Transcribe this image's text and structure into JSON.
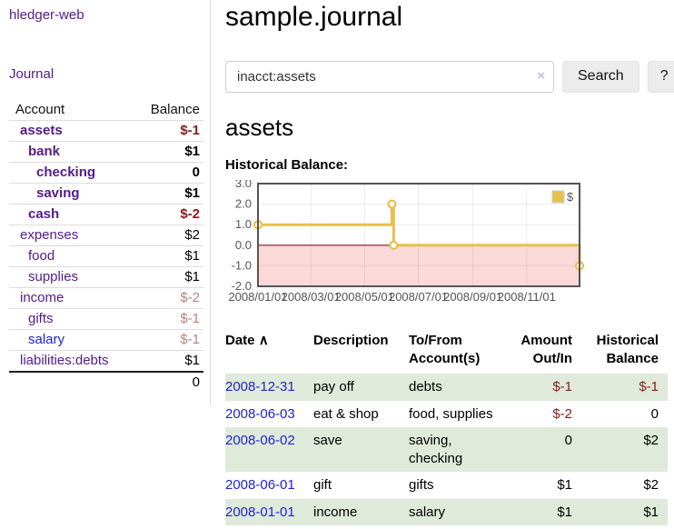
{
  "brand": "hledger-web",
  "sidebar": {
    "journal_link": "Journal",
    "accounts": {
      "header_account": "Account",
      "header_balance": "Balance",
      "rows": [
        {
          "name": "assets",
          "balance": "$-1"
        },
        {
          "name": "bank",
          "balance": "$1"
        },
        {
          "name": "checking",
          "balance": "0"
        },
        {
          "name": "saving",
          "balance": "$1"
        },
        {
          "name": "cash",
          "balance": "$-2"
        },
        {
          "name": "expenses",
          "balance": "$2"
        },
        {
          "name": "food",
          "balance": "$1"
        },
        {
          "name": "supplies",
          "balance": "$1"
        },
        {
          "name": "income",
          "balance": "$-2"
        },
        {
          "name": "gifts",
          "balance": "$-1"
        },
        {
          "name": "salary",
          "balance": "$-1"
        },
        {
          "name": "liabilities:debts",
          "balance": "$1"
        }
      ],
      "total": "0"
    }
  },
  "header": {
    "title": "sample.journal"
  },
  "search": {
    "query": "inacct:assets",
    "clear_label": "×",
    "button_label": "Search",
    "help_label": "?"
  },
  "account_page": {
    "title": "assets",
    "chart_heading": "Historical Balance:"
  },
  "chart_data": {
    "type": "line",
    "step": true,
    "title": "Historical Balance:",
    "series": [
      {
        "name": "$",
        "color": "#e8c14b",
        "points": [
          {
            "date": "2008-01-01",
            "value": 1.0
          },
          {
            "date": "2008-06-01",
            "value": 2.0
          },
          {
            "date": "2008-06-03",
            "value": 0.0
          },
          {
            "date": "2008-12-31",
            "value": -1.0
          }
        ]
      }
    ],
    "x_range": [
      "2008-01-01",
      "2008-12-31"
    ],
    "x_ticks": [
      "2008/01/01",
      "2008/03/01",
      "2008/05/01",
      "2008/07/01",
      "2008/09/01",
      "2008/11/01"
    ],
    "y_ticks": [
      3.0,
      2.0,
      1.0,
      0.0,
      -1.0,
      -2.0
    ],
    "ylim": [
      -2.0,
      3.0
    ],
    "grid": true,
    "legend_position": "top-right",
    "negative_region_color": "#fbd9d9",
    "zero_line_color": "#8b1a1a",
    "border_color": "#545454",
    "tick_label_color": "#545454"
  },
  "register": {
    "headers": {
      "date": "Date",
      "description": "Description",
      "accounts": "To/From Account(s)",
      "amount": "Amount Out/In",
      "balance": "Historical Balance"
    },
    "sort_indicator": "∧",
    "rows": [
      {
        "date": "2008-12-31",
        "description": "pay off",
        "accounts": "debts",
        "amount": "$-1",
        "balance": "$-1"
      },
      {
        "date": "2008-06-03",
        "description": "eat & shop",
        "accounts": "food, supplies",
        "amount": "$-2",
        "balance": "0"
      },
      {
        "date": "2008-06-02",
        "description": "save",
        "accounts": "saving, checking",
        "amount": "0",
        "balance": "$2"
      },
      {
        "date": "2008-06-01",
        "description": "gift",
        "accounts": "gifts",
        "amount": "$1",
        "balance": "$2"
      },
      {
        "date": "2008-01-01",
        "description": "income",
        "accounts": "salary",
        "amount": "$1",
        "balance": "$1"
      }
    ]
  }
}
